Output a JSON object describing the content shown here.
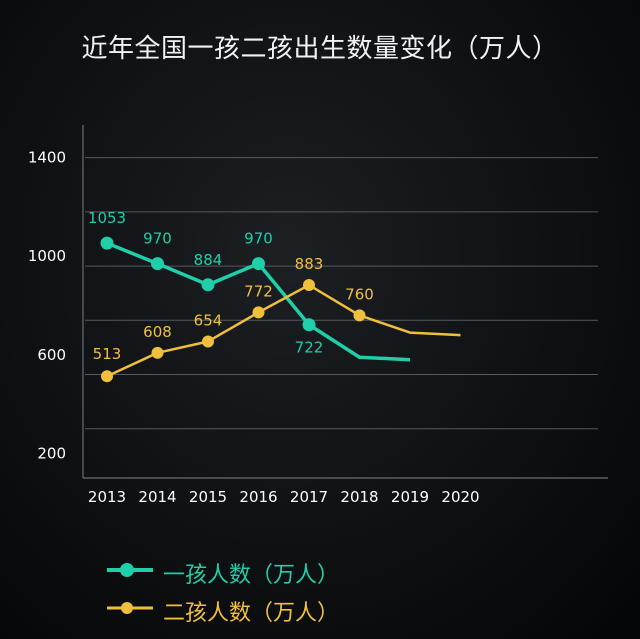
{
  "title": "近年全国一孩二孩出生数量变化（万人）",
  "legend": [
    {
      "label": "一孩人数（万人）",
      "color": "#1fcfa9"
    },
    {
      "label": "二孩人数（万人）",
      "color": "#f0c03c"
    }
  ],
  "chart_data": {
    "type": "line",
    "title": "近年全国一孩二孩出生数量变化（万人）",
    "x": [
      "2013",
      "2014",
      "2015",
      "2016",
      "2017",
      "2018",
      "2019",
      "2020"
    ],
    "y_ticks": [
      "1400",
      "1000",
      "600",
      "200"
    ],
    "ylim": [
      100,
      1500
    ],
    "grid": true,
    "legend_position": "bottom-left",
    "series": [
      {
        "name": "一孩人数（万人）",
        "color": "#1fcfa9",
        "values": [
          1053,
          970,
          884,
          970,
          722,
          590,
          580,
          null
        ],
        "labels": [
          "1053",
          "970",
          "884",
          "970",
          "722",
          "",
          "",
          ""
        ],
        "markers": [
          true,
          true,
          true,
          true,
          true,
          false,
          false,
          false
        ]
      },
      {
        "name": "二孩人数（万人）",
        "color": "#f0c03c",
        "values": [
          513,
          608,
          654,
          772,
          883,
          760,
          690,
          680
        ],
        "labels": [
          "513",
          "608",
          "654",
          "772",
          "883",
          "760",
          "",
          ""
        ],
        "markers": [
          true,
          true,
          true,
          true,
          true,
          true,
          false,
          false
        ]
      }
    ]
  }
}
